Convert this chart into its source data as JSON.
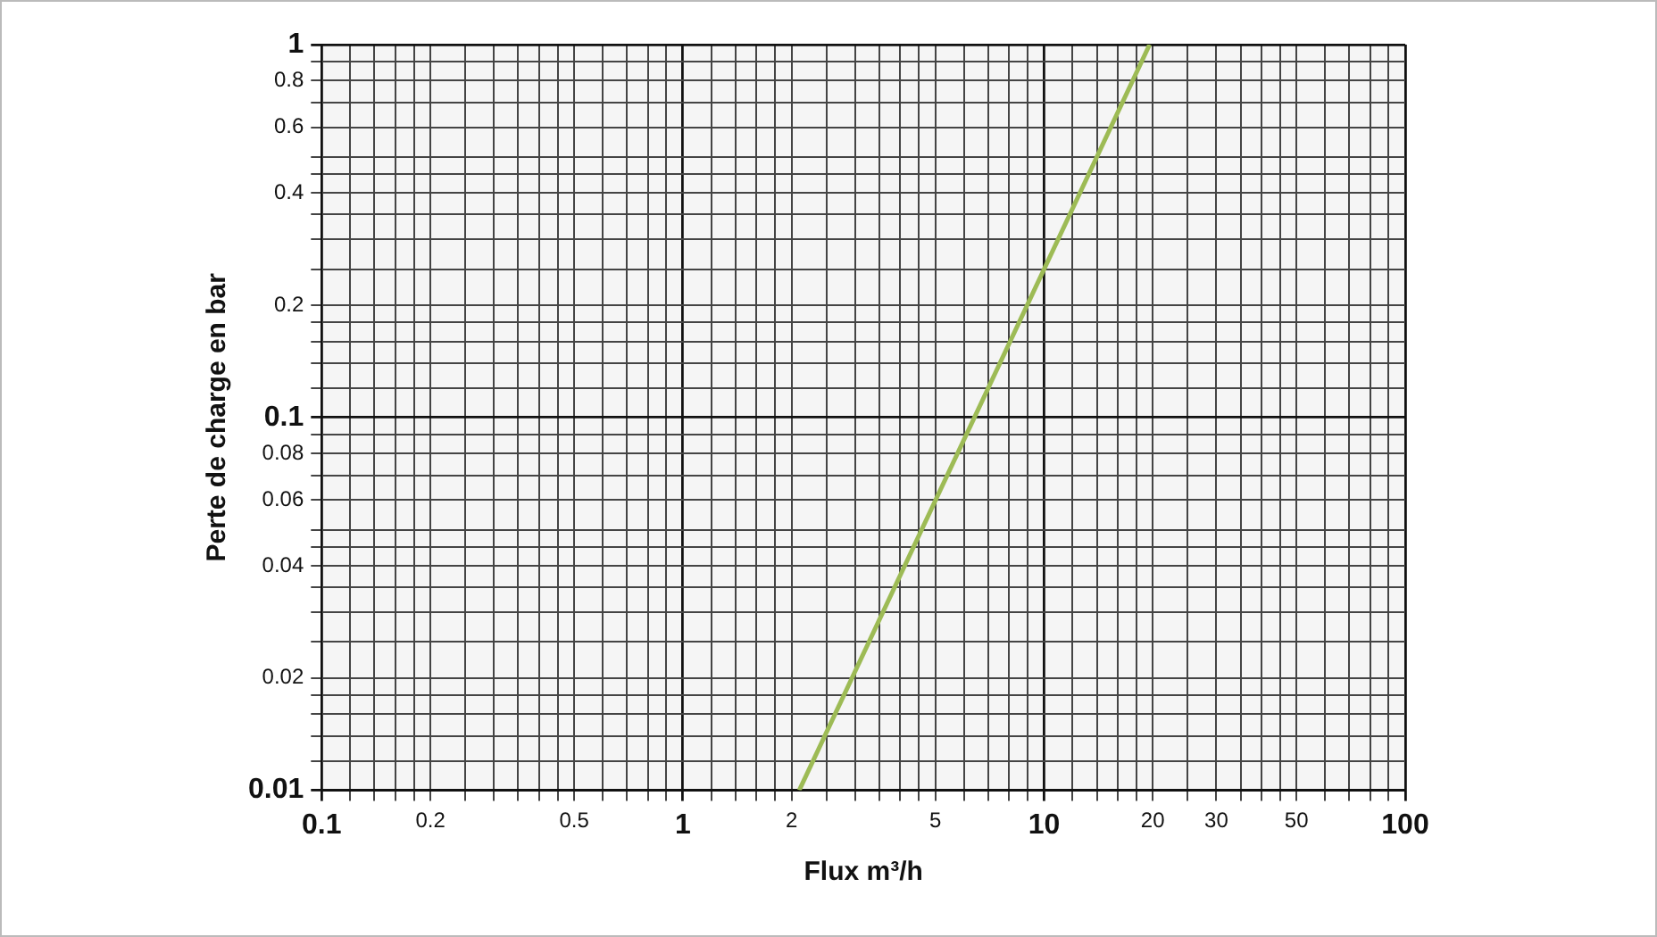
{
  "chart_data": {
    "type": "line",
    "xlabel": "Flux m³/h",
    "ylabel": "Perte de charge en bar",
    "log": "xy",
    "grid": true,
    "legend": false,
    "marker": "none",
    "line_style": "solid",
    "xlim": [
      0.1,
      100
    ],
    "ylim": [
      0.01,
      1
    ],
    "xticks": [
      0.1,
      {
        "value": 0.12,
        "label": null
      },
      {
        "value": 0.14,
        "label": null
      },
      {
        "value": 0.16,
        "label": null
      },
      {
        "value": 0.18,
        "label": null
      },
      0.2,
      {
        "value": 0.25,
        "label": null
      },
      {
        "value": 0.3,
        "label": null
      },
      {
        "value": 0.35,
        "label": null
      },
      {
        "value": 0.4,
        "label": null
      },
      {
        "value": 0.45,
        "label": null
      },
      0.5,
      {
        "value": 0.6,
        "label": null
      },
      {
        "value": 0.7,
        "label": null
      },
      {
        "value": 0.8,
        "label": null
      },
      {
        "value": 0.9,
        "label": null
      },
      1,
      {
        "value": 1.2,
        "label": null
      },
      {
        "value": 1.4,
        "label": null
      },
      {
        "value": 1.6,
        "label": null
      },
      {
        "value": 1.8,
        "label": null
      },
      2,
      {
        "value": 2.5,
        "label": null
      },
      {
        "value": 3,
        "label": null
      },
      {
        "value": 3.5,
        "label": null
      },
      {
        "value": 4,
        "label": null
      },
      {
        "value": 4.5,
        "label": null
      },
      5,
      {
        "value": 6,
        "label": null
      },
      {
        "value": 7,
        "label": null
      },
      {
        "value": 8,
        "label": null
      },
      {
        "value": 9,
        "label": null
      },
      10,
      {
        "value": 12,
        "label": null
      },
      {
        "value": 14,
        "label": null
      },
      {
        "value": 16,
        "label": null
      },
      {
        "value": 18,
        "label": null
      },
      20,
      {
        "value": 25,
        "label": null
      },
      30,
      {
        "value": 35,
        "label": null
      },
      {
        "value": 40,
        "label": null
      },
      {
        "value": 45,
        "label": null
      },
      50,
      {
        "value": 60,
        "label": null
      },
      {
        "value": 70,
        "label": null
      },
      {
        "value": 80,
        "label": null
      },
      {
        "value": 90,
        "label": null
      },
      100
    ],
    "yticks": [
      0.01,
      {
        "value": 0.012,
        "label": null
      },
      {
        "value": 0.014,
        "label": null
      },
      {
        "value": 0.016,
        "label": null
      },
      {
        "value": 0.018,
        "label": null
      },
      0.02,
      {
        "value": 0.025,
        "label": null
      },
      {
        "value": 0.03,
        "label": null
      },
      {
        "value": 0.035,
        "label": null
      },
      0.04,
      {
        "value": 0.045,
        "label": null
      },
      {
        "value": 0.05,
        "label": null
      },
      0.06,
      {
        "value": 0.07,
        "label": null
      },
      0.08,
      {
        "value": 0.09,
        "label": null
      },
      0.1,
      {
        "value": 0.12,
        "label": null
      },
      {
        "value": 0.14,
        "label": null
      },
      {
        "value": 0.16,
        "label": null
      },
      {
        "value": 0.18,
        "label": null
      },
      0.2,
      {
        "value": 0.25,
        "label": null
      },
      {
        "value": 0.3,
        "label": null
      },
      {
        "value": 0.35,
        "label": null
      },
      0.4,
      {
        "value": 0.45,
        "label": null
      },
      {
        "value": 0.5,
        "label": null
      },
      0.6,
      {
        "value": 0.7,
        "label": null
      },
      0.8,
      {
        "value": 0.9,
        "label": null
      },
      1
    ],
    "series": [
      {
        "color": "#9dbb55",
        "x": [
          2.1,
          19.6
        ],
        "values": [
          0.01,
          1
        ]
      }
    ]
  }
}
